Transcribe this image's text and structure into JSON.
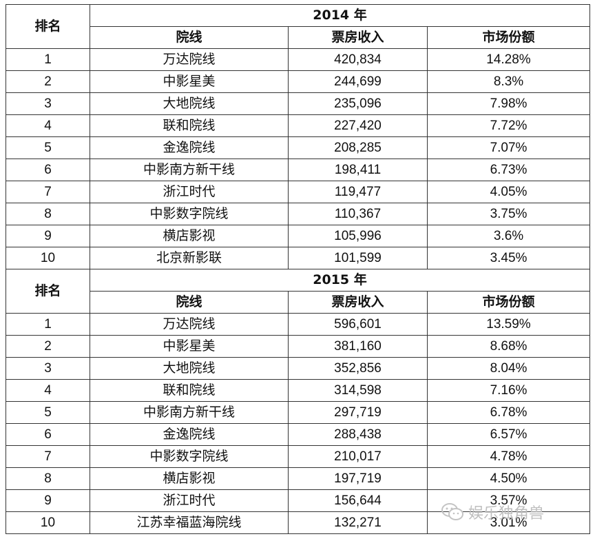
{
  "columns": {
    "rank": "排名",
    "chain": "院线",
    "box_office": "票房收入",
    "share": "市场份额"
  },
  "sections": [
    {
      "year": "2014 年",
      "rows": [
        {
          "rank": "1",
          "chain": "万达院线",
          "box_office": "420,834",
          "share": "14.28%"
        },
        {
          "rank": "2",
          "chain": "中影星美",
          "box_office": "244,699",
          "share": "8.3%"
        },
        {
          "rank": "3",
          "chain": "大地院线",
          "box_office": "235,096",
          "share": "7.98%"
        },
        {
          "rank": "4",
          "chain": "联和院线",
          "box_office": "227,420",
          "share": "7.72%"
        },
        {
          "rank": "5",
          "chain": "金逸院线",
          "box_office": "208,285",
          "share": "7.07%"
        },
        {
          "rank": "6",
          "chain": "中影南方新干线",
          "box_office": "198,411",
          "share": "6.73%"
        },
        {
          "rank": "7",
          "chain": "浙江时代",
          "box_office": "119,477",
          "share": "4.05%"
        },
        {
          "rank": "8",
          "chain": "中影数字院线",
          "box_office": "110,367",
          "share": "3.75%"
        },
        {
          "rank": "9",
          "chain": "横店影视",
          "box_office": "105,996",
          "share": "3.6%"
        },
        {
          "rank": "10",
          "chain": "北京新影联",
          "box_office": "101,599",
          "share": "3.45%"
        }
      ]
    },
    {
      "year": "2015 年",
      "rows": [
        {
          "rank": "1",
          "chain": "万达院线",
          "box_office": "596,601",
          "share": "13.59%"
        },
        {
          "rank": "2",
          "chain": "中影星美",
          "box_office": "381,160",
          "share": "8.68%"
        },
        {
          "rank": "3",
          "chain": "大地院线",
          "box_office": "352,856",
          "share": "8.04%"
        },
        {
          "rank": "4",
          "chain": "联和院线",
          "box_office": "314,598",
          "share": "7.16%"
        },
        {
          "rank": "5",
          "chain": "中影南方新干线",
          "box_office": "297,719",
          "share": "6.78%"
        },
        {
          "rank": "6",
          "chain": "金逸院线",
          "box_office": "288,438",
          "share": "6.57%"
        },
        {
          "rank": "7",
          "chain": "中影数字院线",
          "box_office": "210,017",
          "share": "4.78%"
        },
        {
          "rank": "8",
          "chain": "横店影视",
          "box_office": "197,719",
          "share": "4.50%"
        },
        {
          "rank": "9",
          "chain": "浙江时代",
          "box_office": "156,644",
          "share": "3.57%"
        },
        {
          "rank": "10",
          "chain": "江苏幸福蓝海院线",
          "box_office": "132,271",
          "share": "3.01%"
        }
      ]
    }
  ],
  "watermark": {
    "icon": "wechat-icon",
    "text": "娱乐独角兽",
    "color": "#bfbfbf"
  }
}
